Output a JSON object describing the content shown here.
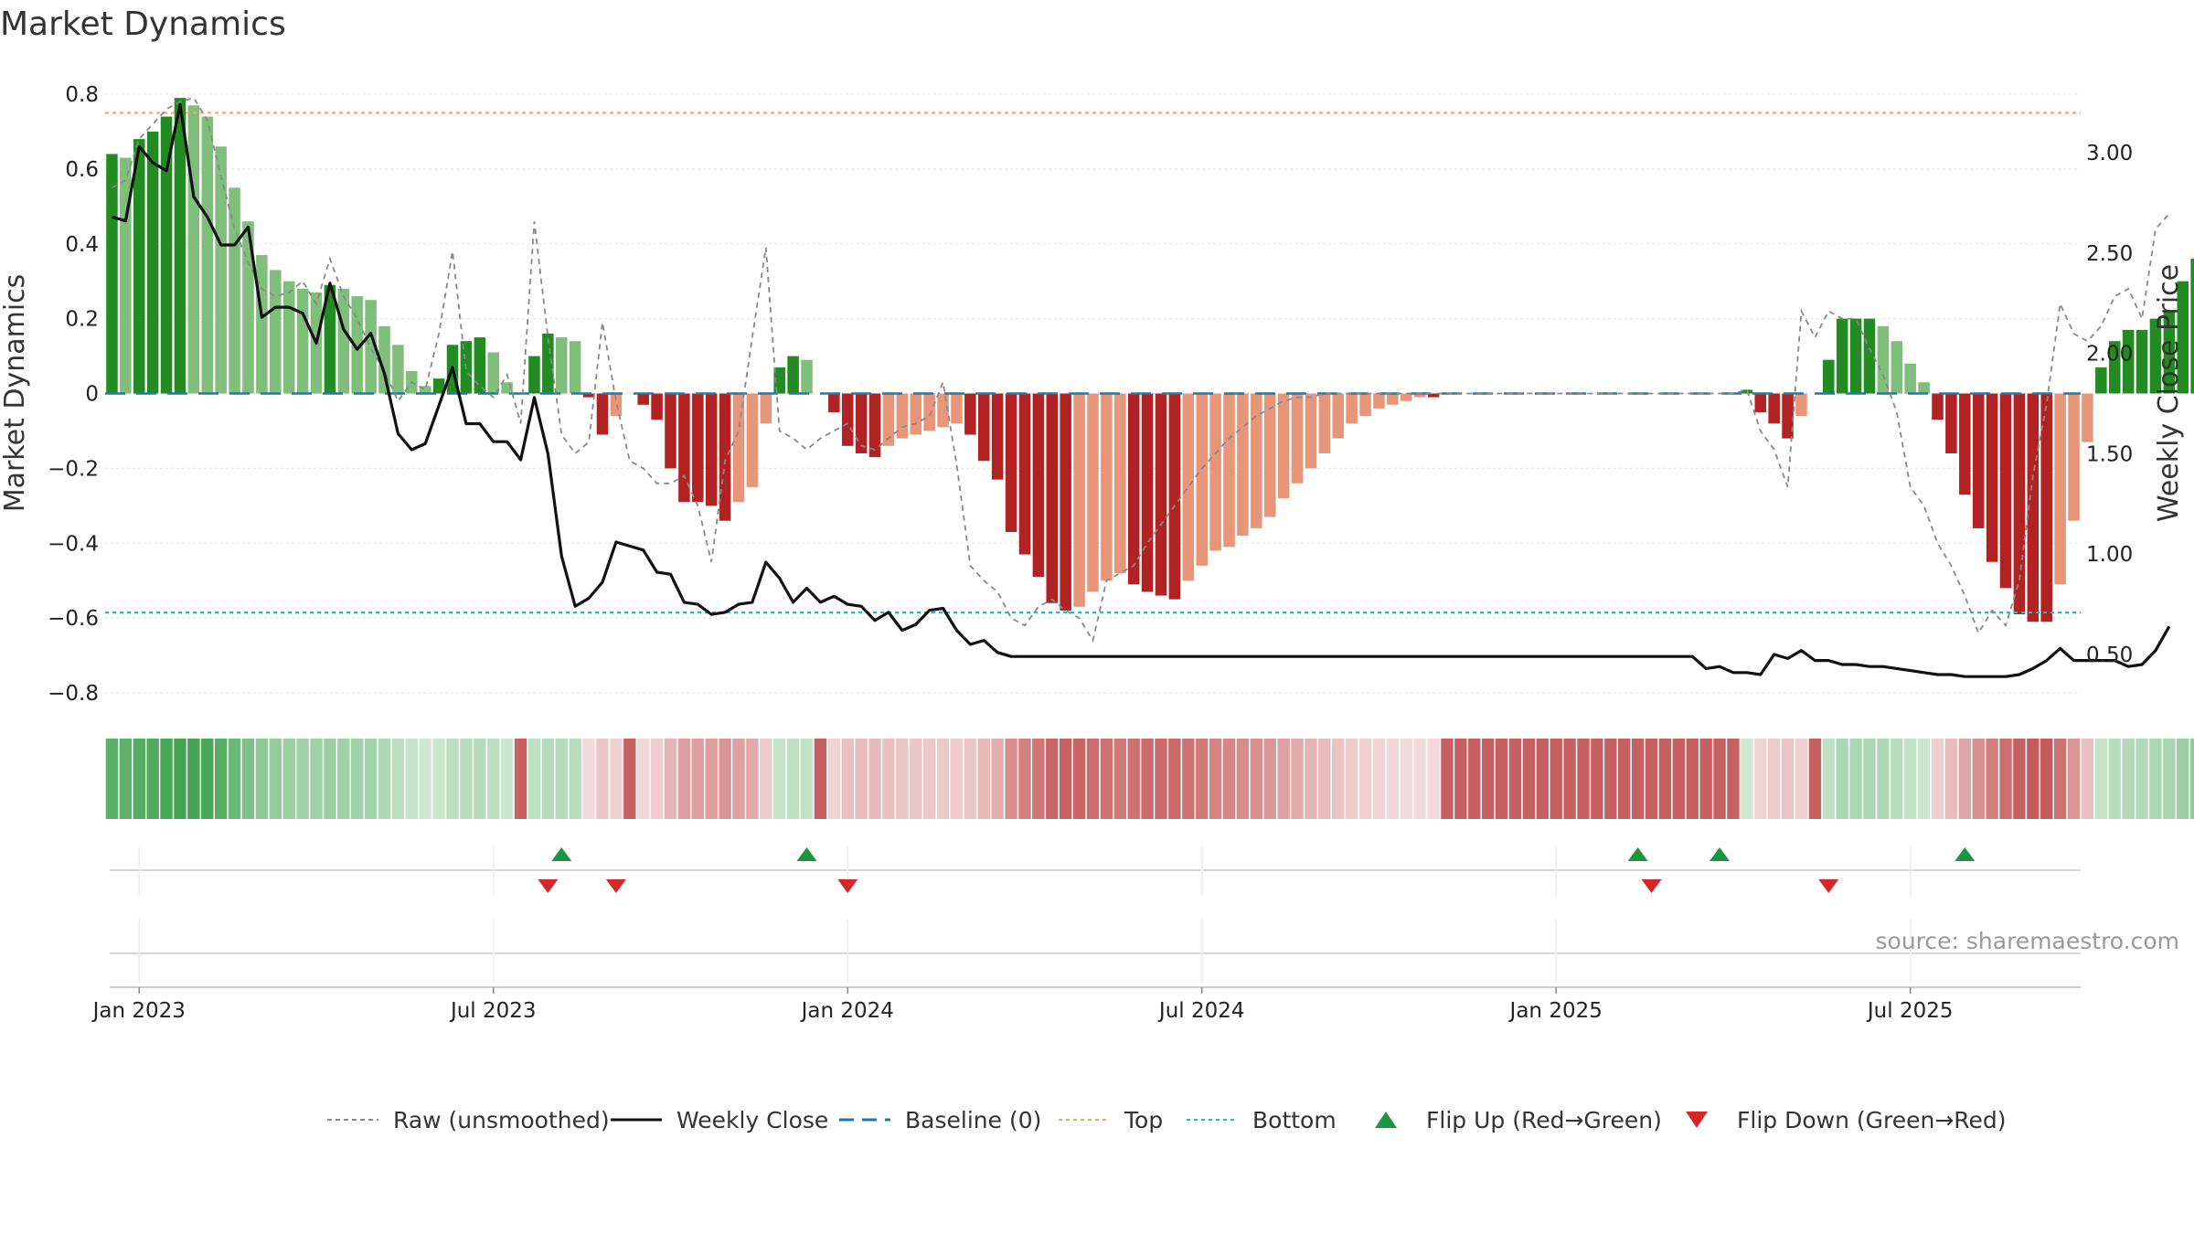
{
  "title": "Market Dynamics",
  "source": "source: sharemaestro.com",
  "chart_data": {
    "type": "bar",
    "title": "Market Dynamics",
    "ylabel": "Market Dynamics",
    "y2label": "Weekly Close Price",
    "ylim": [
      -0.85,
      0.82
    ],
    "y2lim": [
      0.1,
      3.4
    ],
    "yticks": [
      0.8,
      0.6,
      0.4,
      0.2,
      0,
      -0.2,
      -0.4,
      -0.6,
      -0.8
    ],
    "yticklabels": [
      "0.8",
      "0.6",
      "0.4",
      "0.2",
      "0",
      "−0.2",
      "−0.4",
      "−0.6",
      "−0.8"
    ],
    "y2ticks": [
      3.0,
      2.5,
      2.0,
      1.5,
      1.0,
      0.5
    ],
    "y2ticklabels": [
      "3.00",
      "2.50",
      "2.00",
      "1.50",
      "1.00",
      "0.50"
    ],
    "xticks": [
      {
        "week": 2,
        "label": "Jan 2023"
      },
      {
        "week": 28,
        "label": "Jul 2023"
      },
      {
        "week": 54,
        "label": "Jan 2024"
      },
      {
        "week": 80,
        "label": "Jul 2024"
      },
      {
        "week": 106,
        "label": "Jan 2025"
      },
      {
        "week": 132,
        "label": "Jul 2025"
      }
    ],
    "top_level": 0.75,
    "bottom_level": -0.585,
    "weeks": 145,
    "dynamics": [
      0.64,
      0.63,
      0.68,
      0.7,
      0.74,
      0.79,
      0.77,
      0.74,
      0.66,
      0.55,
      0.46,
      0.37,
      0.33,
      0.3,
      0.28,
      0.27,
      0.29,
      0.28,
      0.26,
      0.25,
      0.18,
      0.13,
      0.06,
      0.02,
      0.04,
      0.13,
      0.14,
      0.15,
      0.11,
      0.03,
      0.0,
      0.1,
      0.16,
      0.15,
      0.14,
      -0.01,
      -0.11,
      -0.06,
      0.0,
      -0.03,
      -0.07,
      -0.2,
      -0.29,
      -0.29,
      -0.3,
      -0.34,
      -0.29,
      -0.25,
      -0.08,
      0.07,
      0.1,
      0.09,
      0.0,
      -0.05,
      -0.14,
      -0.16,
      -0.17,
      -0.14,
      -0.12,
      -0.11,
      -0.1,
      -0.09,
      -0.08,
      -0.11,
      -0.18,
      -0.23,
      -0.37,
      -0.43,
      -0.49,
      -0.56,
      -0.58,
      -0.57,
      -0.53,
      -0.5,
      -0.48,
      -0.51,
      -0.53,
      -0.54,
      -0.55,
      -0.5,
      -0.46,
      -0.42,
      -0.41,
      -0.38,
      -0.36,
      -0.33,
      -0.28,
      -0.24,
      -0.2,
      -0.16,
      -0.12,
      -0.08,
      -0.06,
      -0.04,
      -0.03,
      -0.02,
      -0.01,
      -0.01,
      0,
      0,
      0,
      0,
      0,
      0,
      0,
      0,
      0,
      0,
      0,
      0,
      0,
      0,
      0,
      0,
      0,
      0,
      0,
      0,
      0,
      0,
      0.01,
      -0.05,
      -0.08,
      -0.12,
      -0.06,
      0,
      0.09,
      0.2,
      0.2,
      0.2,
      0.18,
      0.14,
      0.08,
      0.03,
      -0.07,
      -0.16,
      -0.27,
      -0.36,
      -0.45,
      -0.52,
      -0.59,
      -0.61,
      -0.61,
      -0.51,
      -0.34,
      -0.13,
      0.07,
      0.14,
      0.17,
      0.17,
      0.2,
      0.22,
      0.3,
      0.36
    ],
    "raw": [
      0.55,
      0.57,
      0.68,
      0.72,
      0.76,
      0.78,
      0.79,
      0.73,
      0.58,
      0.44,
      0.35,
      0.28,
      0.26,
      0.27,
      0.3,
      0.24,
      0.36,
      0.26,
      0.2,
      0.12,
      0.06,
      -0.02,
      0.03,
      0.01,
      0.16,
      0.38,
      0.06,
      0.02,
      -0.01,
      0.05,
      -0.08,
      0.46,
      0.15,
      -0.11,
      -0.16,
      -0.13,
      0.19,
      -0.02,
      -0.18,
      -0.2,
      -0.24,
      -0.24,
      -0.22,
      -0.3,
      -0.45,
      -0.18,
      -0.1,
      0.15,
      0.39,
      -0.1,
      -0.12,
      -0.15,
      -0.12,
      -0.1,
      -0.08,
      -0.14,
      -0.15,
      -0.12,
      -0.09,
      -0.08,
      -0.06,
      0.03,
      -0.19,
      -0.46,
      -0.5,
      -0.53,
      -0.6,
      -0.62,
      -0.57,
      -0.55,
      -0.58,
      -0.6,
      -0.66,
      -0.5,
      -0.48,
      -0.46,
      -0.4,
      -0.35,
      -0.3,
      -0.25,
      -0.2,
      -0.16,
      -0.12,
      -0.09,
      -0.06,
      -0.04,
      -0.02,
      -0.01,
      -0.01,
      0,
      0,
      0,
      0,
      0,
      0,
      0,
      0,
      0,
      0,
      0,
      0,
      0,
      0,
      0,
      0,
      0,
      0,
      0,
      0,
      0,
      0,
      0,
      0,
      0,
      0,
      0,
      0,
      0,
      0,
      0,
      0.01,
      -0.1,
      -0.15,
      -0.25,
      0.22,
      0.15,
      0.22,
      0.2,
      0.2,
      0.12,
      0.05,
      -0.05,
      -0.25,
      -0.3,
      -0.4,
      -0.46,
      -0.54,
      -0.64,
      -0.58,
      -0.62,
      -0.5,
      -0.22,
      -0.03,
      0.24,
      0.16,
      0.14,
      0.18,
      0.26,
      0.28,
      0.2,
      0.44,
      0.48
    ],
    "close": [
      2.68,
      2.66,
      3.03,
      2.95,
      2.91,
      3.24,
      2.78,
      2.68,
      2.54,
      2.54,
      2.63,
      2.18,
      2.23,
      2.23,
      2.2,
      2.05,
      2.35,
      2.12,
      2.02,
      2.1,
      1.9,
      1.6,
      1.52,
      1.55,
      1.74,
      1.93,
      1.65,
      1.65,
      1.56,
      1.56,
      1.47,
      1.78,
      1.5,
      0.99,
      0.74,
      0.78,
      0.86,
      1.06,
      1.04,
      1.02,
      0.91,
      0.9,
      0.76,
      0.75,
      0.7,
      0.71,
      0.75,
      0.76,
      0.96,
      0.88,
      0.76,
      0.83,
      0.76,
      0.79,
      0.75,
      0.74,
      0.67,
      0.71,
      0.62,
      0.65,
      0.72,
      0.73,
      0.62,
      0.55,
      0.57,
      0.51,
      0.49,
      0.49,
      0.49,
      0.49,
      0.49,
      0.49,
      0.49,
      0.49,
      0.49,
      0.49,
      0.49,
      0.49,
      0.49,
      0.49,
      0.49,
      0.49,
      0.49,
      0.49,
      0.49,
      0.49,
      0.49,
      0.49,
      0.49,
      0.49,
      0.49,
      0.49,
      0.49,
      0.49,
      0.49,
      0.49,
      0.49,
      0.49,
      0.49,
      0.49,
      0.49,
      0.49,
      0.49,
      0.49,
      0.49,
      0.49,
      0.49,
      0.49,
      0.49,
      0.49,
      0.49,
      0.49,
      0.49,
      0.49,
      0.49,
      0.49,
      0.49,
      0.43,
      0.44,
      0.41,
      0.41,
      0.4,
      0.5,
      0.48,
      0.52,
      0.47,
      0.47,
      0.45,
      0.45,
      0.44,
      0.44,
      0.43,
      0.42,
      0.41,
      0.4,
      0.4,
      0.39,
      0.39,
      0.39,
      0.39,
      0.4,
      0.43,
      0.47,
      0.53,
      0.47,
      0.47,
      0.47,
      0.47,
      0.44,
      0.45,
      0.52,
      0.64
    ],
    "flip_up_weeks": [
      33,
      51,
      112,
      118,
      136
    ],
    "flip_down_weeks": [
      32,
      37,
      54,
      113,
      126
    ],
    "legend": [
      {
        "label": "Raw (unsmoothed)",
        "style": "dashed-grey"
      },
      {
        "label": "Weekly Close",
        "style": "solid-black"
      },
      {
        "label": "Baseline (0)",
        "style": "dashed-blue"
      },
      {
        "label": "Top",
        "style": "dotted-orange"
      },
      {
        "label": "Bottom",
        "style": "dotted-cyan"
      },
      {
        "label": "Flip Up (Red→Green)",
        "style": "triangle-up-green"
      },
      {
        "label": "Flip Down (Green→Red)",
        "style": "triangle-down-red"
      }
    ],
    "legend_position": "bottom",
    "colors": {
      "strong_green": "#228b22",
      "light_green": "#7fbf7b",
      "strong_red": "#b22222",
      "light_red": "#e8967a",
      "baseline": "#1f77b4",
      "top": "#f4a460",
      "bottom": "#17becf",
      "close": "#111111",
      "raw": "#888888",
      "flip_up": "#1a9641",
      "flip_down": "#d62728"
    }
  }
}
